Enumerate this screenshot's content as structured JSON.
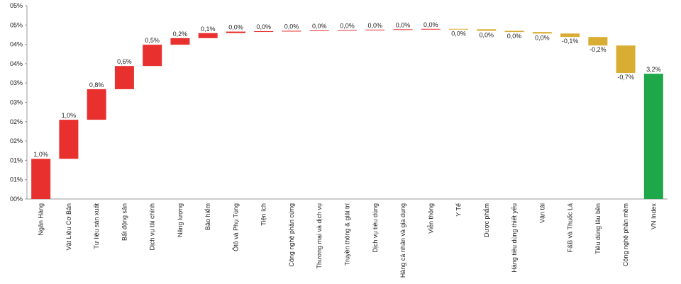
{
  "chart_data": {
    "type": "waterfall",
    "categories": [
      "Ngân Hàng",
      "Vật Liệu Cơ Bản",
      "Tư liệu sản xuất",
      "Bất động sản",
      "Dịch vụ tài chính",
      "Năng lượng",
      "Bảo hiểm",
      "Ôtô và Phụ Tùng",
      "Tiện ích",
      "Công nghệ phần cứng",
      "Thương mại và dịch vụ",
      "Truyền thông & giải trí",
      "Dịch vụ tiêu dùng",
      "Hàng cá nhân và gia dụng",
      "Viễn thông",
      "Y Tế",
      "Dược phẩm",
      "Hàng tiêu dùng thiết yếu",
      "Vận tải",
      "F&B và Thuốc Lá",
      "Tiêu dùng lâu bền",
      "Công nghệ phần mềm",
      "VN Index"
    ],
    "values": [
      1.04,
      1.01,
      0.79,
      0.6,
      0.55,
      0.17,
      0.13,
      0.04,
      0.01,
      0.01,
      0.01,
      0.01,
      0.01,
      0.01,
      0.01,
      -0.01,
      -0.04,
      -0.03,
      -0.04,
      -0.09,
      -0.22,
      -0.71,
      3.24
    ],
    "value_labels": [
      "1,0%",
      "1,0%",
      "0,8%",
      "0,6%",
      "0,5%",
      "0,2%",
      "0,1%",
      "0,0%",
      "0,0%",
      "0,0%",
      "0,0%",
      "0,0%",
      "0,0%",
      "0,0%",
      "0,0%",
      "0,0%",
      "0,0%",
      "0,0%",
      "0,0%",
      "-0,1%",
      "-0,2%",
      "-0,7%",
      "3,2%"
    ],
    "measure": [
      "relative",
      "relative",
      "relative",
      "relative",
      "relative",
      "relative",
      "relative",
      "relative",
      "relative",
      "relative",
      "relative",
      "relative",
      "relative",
      "relative",
      "relative",
      "relative",
      "relative",
      "relative",
      "relative",
      "relative",
      "relative",
      "relative",
      "total"
    ],
    "increase_color": "#e8312f",
    "decrease_color": "#d9ad34",
    "total_color": "#1ea84a",
    "ylim": [
      0,
      5
    ],
    "yticks": [
      {
        "value": 0,
        "label": "00%"
      },
      {
        "value": 0.5,
        "label": "01%"
      },
      {
        "value": 1,
        "label": "01%"
      },
      {
        "value": 1.5,
        "label": "02%"
      },
      {
        "value": 2,
        "label": "02%"
      },
      {
        "value": 2.5,
        "label": "03%"
      },
      {
        "value": 3,
        "label": "03%"
      },
      {
        "value": 3.5,
        "label": "04%"
      },
      {
        "value": 4,
        "label": "04%"
      },
      {
        "value": 4.5,
        "label": "05%"
      },
      {
        "value": 5,
        "label": "05%"
      }
    ]
  }
}
